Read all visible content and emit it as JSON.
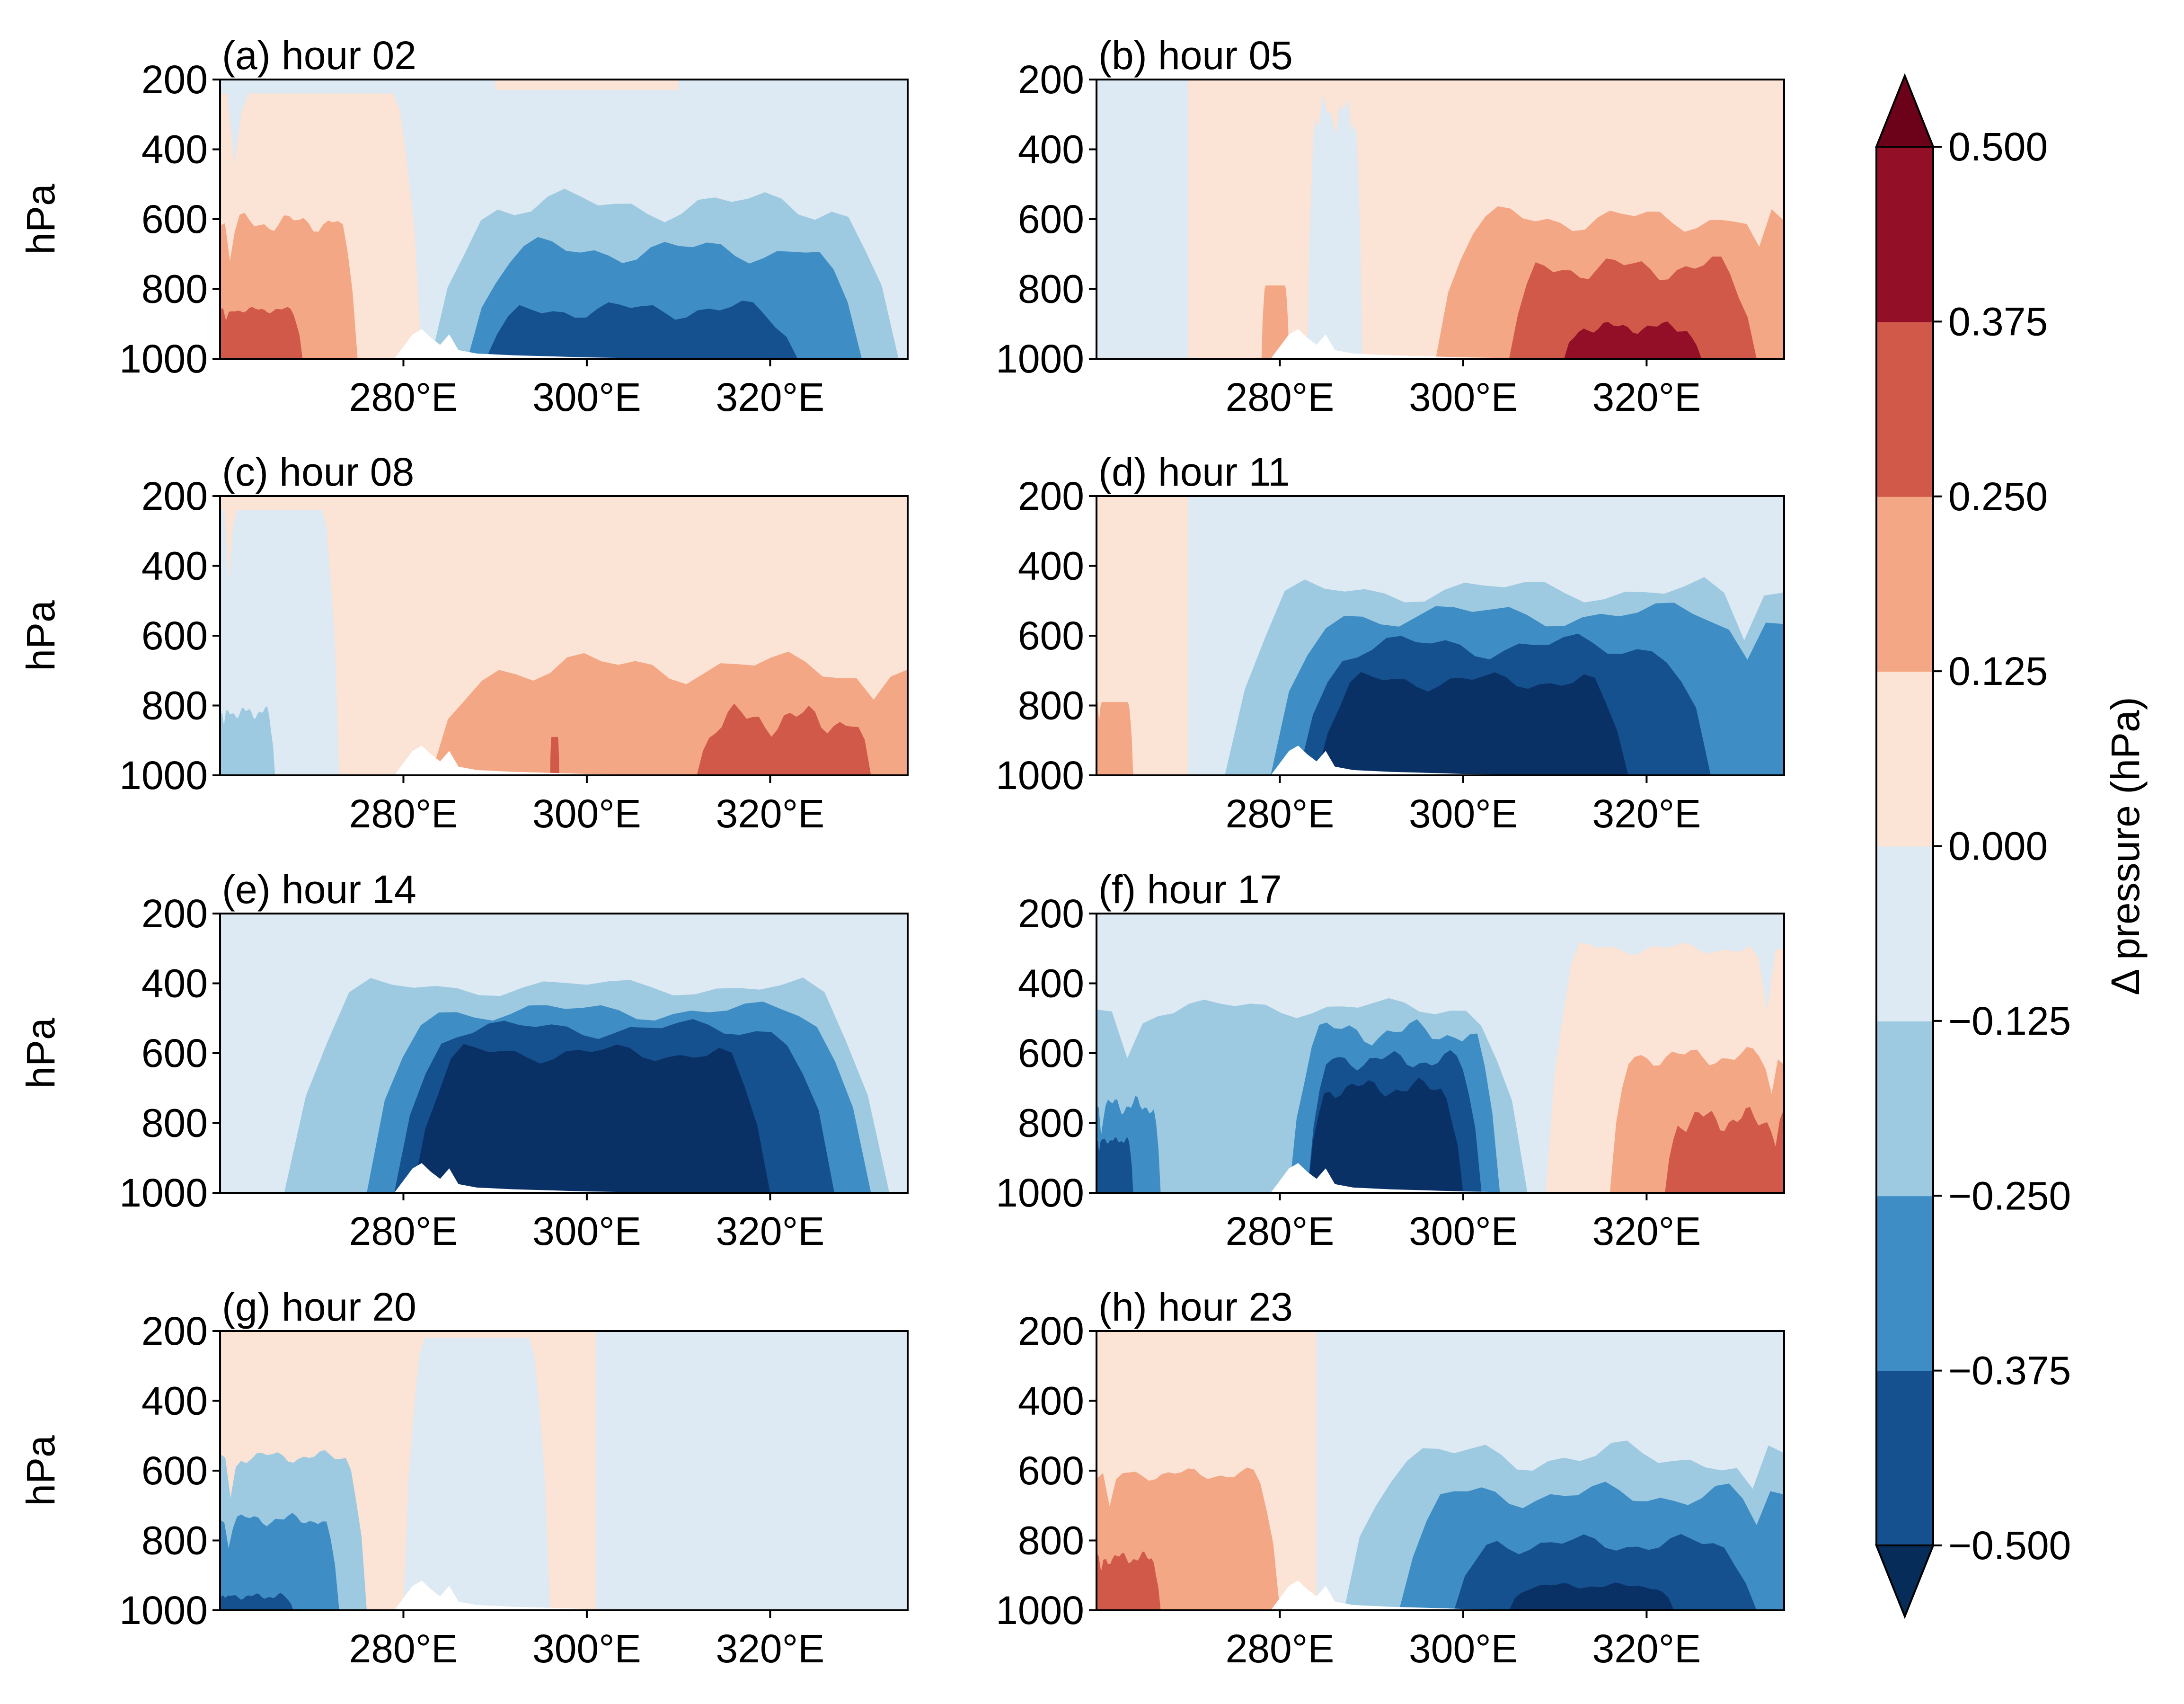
{
  "chart_data": {
    "type": "heatmap",
    "subtype": "filled-contour",
    "panels": [
      {
        "title": "(a) hour 02",
        "ylabel": "hPa"
      },
      {
        "title": "(b) hour 05",
        "ylabel": ""
      },
      {
        "title": "(c) hour 08",
        "ylabel": "hPa"
      },
      {
        "title": "(d) hour 11",
        "ylabel": ""
      },
      {
        "title": "(e) hour 14",
        "ylabel": "hPa"
      },
      {
        "title": "(f) hour 17",
        "ylabel": ""
      },
      {
        "title": "(g) hour 20",
        "ylabel": "hPa"
      },
      {
        "title": "(h) hour 23",
        "ylabel": ""
      }
    ],
    "x_ticks": [
      280,
      300,
      320
    ],
    "x_tick_labels": [
      "280°E",
      "300°E",
      "320°E"
    ],
    "xlim": [
      260,
      335
    ],
    "y_ticks": [
      200,
      400,
      600,
      800,
      1000
    ],
    "y_tick_labels": [
      "200",
      "400",
      "600",
      "800",
      "1000"
    ],
    "ylim": [
      1000,
      200
    ],
    "colorbar": {
      "label": "Δ pressure (hPa)",
      "levels": [
        -0.5,
        -0.375,
        -0.25,
        -0.125,
        0.0,
        0.125,
        0.25,
        0.375,
        0.5
      ],
      "tick_labels": [
        "−0.500",
        "−0.375",
        "−0.250",
        "−0.125",
        "0.000",
        "0.125",
        "0.250",
        "0.375",
        "0.500"
      ],
      "colors": [
        "#0a3166",
        "#15508f",
        "#3e8dc4",
        "#9dcae1",
        "#dde9f3",
        "#fbe3d6",
        "#f4a784",
        "#d1594a",
        "#920f27"
      ],
      "extend": "both",
      "under_color": "#062c59",
      "over_color": "#6b0219"
    }
  }
}
